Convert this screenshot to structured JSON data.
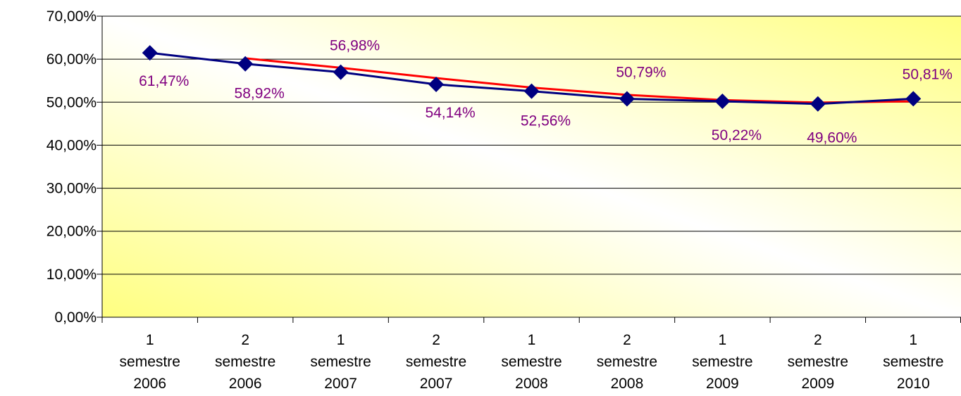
{
  "chart_data": {
    "type": "line",
    "categories": [
      [
        "1",
        "semestre",
        "2006"
      ],
      [
        "2",
        "semestre",
        "2006"
      ],
      [
        "1",
        "semestre",
        "2007"
      ],
      [
        "2",
        "semestre",
        "2007"
      ],
      [
        "1",
        "semestre",
        "2008"
      ],
      [
        "2",
        "semestre",
        "2008"
      ],
      [
        "1",
        "semestre",
        "2009"
      ],
      [
        "2",
        "semestre",
        "2009"
      ],
      [
        "1",
        "semestre",
        "2010"
      ]
    ],
    "series": [
      {
        "color": "#000080",
        "marker": "diamond",
        "values": [
          61.47,
          58.92,
          56.98,
          54.14,
          52.56,
          50.79,
          50.22,
          49.6,
          50.81
        ],
        "value_labels": [
          "61,47%",
          "58,92%",
          "56,98%",
          "54,14%",
          "52,56%",
          "50,79%",
          "50,22%",
          "49,60%",
          "50,81%"
        ],
        "label_color": "#800080"
      },
      {
        "color": "#ff0000",
        "values": [
          null,
          60.2,
          58.0,
          55.6,
          53.4,
          51.7,
          50.5,
          49.9,
          50.2
        ]
      }
    ],
    "ylim": [
      0,
      70
    ],
    "yticks": [
      {
        "value": 0,
        "label": "0,00%"
      },
      {
        "value": 10,
        "label": "10,00%"
      },
      {
        "value": 20,
        "label": "20,00%"
      },
      {
        "value": 30,
        "label": "30,00%"
      },
      {
        "value": 40,
        "label": "40,00%"
      },
      {
        "value": 50,
        "label": "50,00%"
      },
      {
        "value": 60,
        "label": "60,00%"
      },
      {
        "value": 70,
        "label": "70,00%"
      }
    ],
    "grid": true
  }
}
